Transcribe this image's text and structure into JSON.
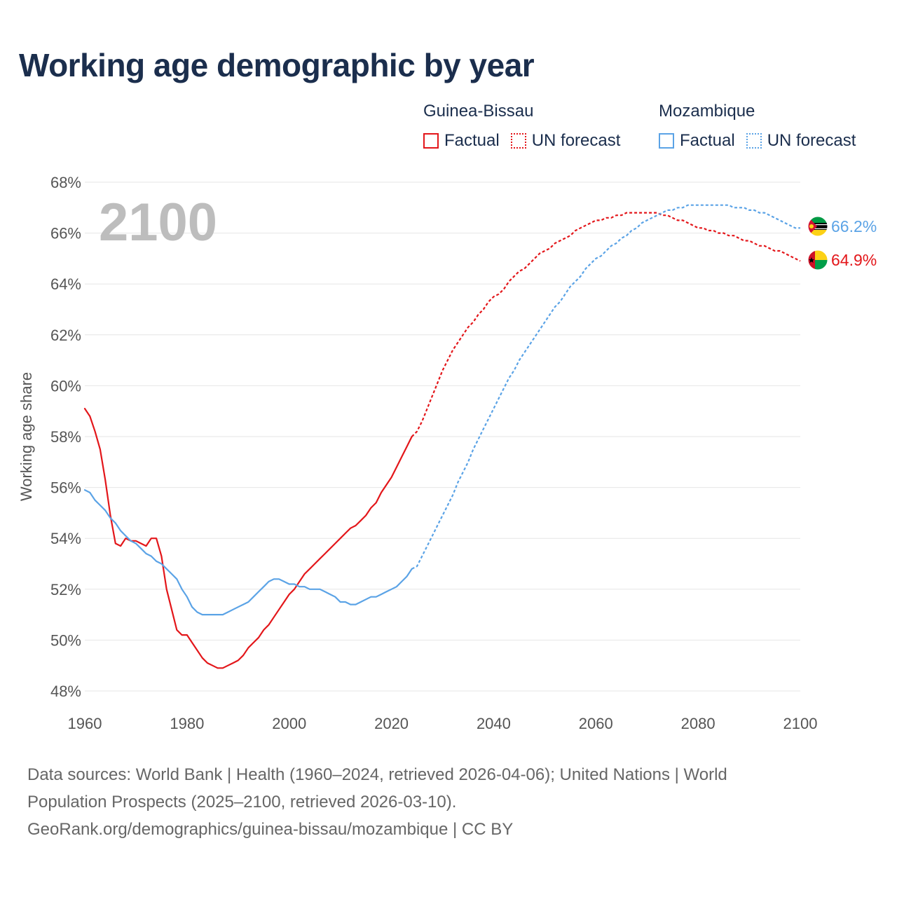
{
  "title": "Working age demographic by year",
  "legend": {
    "groups": [
      {
        "name": "Guinea-Bissau",
        "color": "#e3161a",
        "items": [
          {
            "label": "Factual",
            "style": "solid"
          },
          {
            "label": "UN forecast",
            "style": "dotted"
          }
        ]
      },
      {
        "name": "Mozambique",
        "color": "#5ba3e6",
        "items": [
          {
            "label": "Factual",
            "style": "solid"
          },
          {
            "label": "UN forecast",
            "style": "dotted"
          }
        ]
      }
    ]
  },
  "year_overlay": "2100",
  "end_labels": {
    "mozambique": "66.2%",
    "guinea_bissau": "64.9%"
  },
  "source": {
    "line1": "Data sources: World Bank | Health (1960–2024, retrieved 2026-04-06); United Nations | World",
    "line2": "Population Prospects (2025–2100, retrieved 2026-03-10).",
    "line3": "GeoRank.org/demographics/guinea-bissau/mozambique | CC BY"
  },
  "chart_data": {
    "type": "line",
    "title": "Working age demographic by year",
    "xlabel": "",
    "ylabel": "Working age share",
    "xlim": [
      1960,
      2100
    ],
    "ylim": [
      48,
      68
    ],
    "x_ticks": [
      "1960",
      "1980",
      "2000",
      "2020",
      "2040",
      "2060",
      "2080",
      "2100"
    ],
    "x_tick_values": [
      1960,
      1980,
      2000,
      2020,
      2040,
      2060,
      2080,
      2100
    ],
    "y_ticks": [
      "48%",
      "50%",
      "52%",
      "54%",
      "56%",
      "58%",
      "60%",
      "62%",
      "64%",
      "66%",
      "68%"
    ],
    "y_tick_values": [
      48,
      50,
      52,
      54,
      56,
      58,
      60,
      62,
      64,
      66,
      68
    ],
    "grid": true,
    "series": [
      {
        "name": "Guinea-Bissau",
        "segment": "Factual",
        "color": "#e3161a",
        "style": "solid",
        "x": [
          1960,
          1961,
          1962,
          1963,
          1964,
          1965,
          1966,
          1967,
          1968,
          1969,
          1970,
          1971,
          1972,
          1973,
          1974,
          1975,
          1976,
          1977,
          1978,
          1979,
          1980,
          1981,
          1982,
          1983,
          1984,
          1985,
          1986,
          1987,
          1988,
          1989,
          1990,
          1991,
          1992,
          1993,
          1994,
          1995,
          1996,
          1997,
          1998,
          1999,
          2000,
          2001,
          2002,
          2003,
          2004,
          2005,
          2006,
          2007,
          2008,
          2009,
          2010,
          2011,
          2012,
          2013,
          2014,
          2015,
          2016,
          2017,
          2018,
          2019,
          2020,
          2021,
          2022,
          2023,
          2024
        ],
        "y": [
          59.1,
          58.8,
          58.2,
          57.5,
          56.3,
          54.9,
          53.8,
          53.7,
          54.0,
          53.9,
          53.9,
          53.8,
          53.7,
          54.0,
          54.0,
          53.3,
          52.0,
          51.2,
          50.4,
          50.2,
          50.2,
          49.9,
          49.6,
          49.3,
          49.1,
          49.0,
          48.9,
          48.9,
          49.0,
          49.1,
          49.2,
          49.4,
          49.7,
          49.9,
          50.1,
          50.4,
          50.6,
          50.9,
          51.2,
          51.5,
          51.8,
          52.0,
          52.3,
          52.6,
          52.8,
          53.0,
          53.2,
          53.4,
          53.6,
          53.8,
          54.0,
          54.2,
          54.4,
          54.5,
          54.7,
          54.9,
          55.2,
          55.4,
          55.8,
          56.1,
          56.4,
          56.8,
          57.2,
          57.6,
          58.0
        ]
      },
      {
        "name": "Guinea-Bissau",
        "segment": "UN forecast",
        "color": "#e3161a",
        "style": "dotted",
        "x": [
          2024,
          2025,
          2026,
          2027,
          2028,
          2029,
          2030,
          2031,
          2032,
          2033,
          2034,
          2035,
          2036,
          2037,
          2038,
          2039,
          2040,
          2041,
          2042,
          2043,
          2044,
          2045,
          2046,
          2047,
          2048,
          2049,
          2050,
          2051,
          2052,
          2053,
          2054,
          2055,
          2056,
          2057,
          2058,
          2059,
          2060,
          2061,
          2062,
          2063,
          2064,
          2065,
          2066,
          2067,
          2068,
          2069,
          2070,
          2071,
          2072,
          2073,
          2074,
          2075,
          2076,
          2077,
          2078,
          2079,
          2080,
          2081,
          2082,
          2083,
          2084,
          2085,
          2086,
          2087,
          2088,
          2089,
          2090,
          2091,
          2092,
          2093,
          2094,
          2095,
          2096,
          2097,
          2098,
          2099,
          2100
        ],
        "y": [
          58.0,
          58.2,
          58.6,
          59.1,
          59.6,
          60.1,
          60.6,
          61.0,
          61.4,
          61.7,
          62.0,
          62.3,
          62.5,
          62.8,
          63.0,
          63.3,
          63.5,
          63.6,
          63.8,
          64.1,
          64.3,
          64.5,
          64.6,
          64.8,
          65.0,
          65.2,
          65.3,
          65.4,
          65.6,
          65.7,
          65.8,
          65.9,
          66.1,
          66.2,
          66.3,
          66.4,
          66.5,
          66.5,
          66.6,
          66.6,
          66.7,
          66.7,
          66.8,
          66.8,
          66.8,
          66.8,
          66.8,
          66.8,
          66.8,
          66.7,
          66.7,
          66.6,
          66.5,
          66.5,
          66.4,
          66.3,
          66.2,
          66.2,
          66.1,
          66.1,
          66.0,
          66.0,
          65.9,
          65.9,
          65.8,
          65.7,
          65.7,
          65.6,
          65.5,
          65.5,
          65.4,
          65.3,
          65.3,
          65.2,
          65.1,
          65.0,
          64.9
        ]
      },
      {
        "name": "Mozambique",
        "segment": "Factual",
        "color": "#5ba3e6",
        "style": "solid",
        "x": [
          1960,
          1961,
          1962,
          1963,
          1964,
          1965,
          1966,
          1967,
          1968,
          1969,
          1970,
          1971,
          1972,
          1973,
          1974,
          1975,
          1976,
          1977,
          1978,
          1979,
          1980,
          1981,
          1982,
          1983,
          1984,
          1985,
          1986,
          1987,
          1988,
          1989,
          1990,
          1991,
          1992,
          1993,
          1994,
          1995,
          1996,
          1997,
          1998,
          1999,
          2000,
          2001,
          2002,
          2003,
          2004,
          2005,
          2006,
          2007,
          2008,
          2009,
          2010,
          2011,
          2012,
          2013,
          2014,
          2015,
          2016,
          2017,
          2018,
          2019,
          2020,
          2021,
          2022,
          2023,
          2024
        ],
        "y": [
          55.9,
          55.8,
          55.5,
          55.3,
          55.1,
          54.8,
          54.6,
          54.3,
          54.1,
          53.9,
          53.8,
          53.6,
          53.4,
          53.3,
          53.1,
          53.0,
          52.8,
          52.6,
          52.4,
          52.0,
          51.7,
          51.3,
          51.1,
          51.0,
          51.0,
          51.0,
          51.0,
          51.0,
          51.1,
          51.2,
          51.3,
          51.4,
          51.5,
          51.7,
          51.9,
          52.1,
          52.3,
          52.4,
          52.4,
          52.3,
          52.2,
          52.2,
          52.1,
          52.1,
          52.0,
          52.0,
          52.0,
          51.9,
          51.8,
          51.7,
          51.5,
          51.5,
          51.4,
          51.4,
          51.5,
          51.6,
          51.7,
          51.7,
          51.8,
          51.9,
          52.0,
          52.1,
          52.3,
          52.5,
          52.8
        ]
      },
      {
        "name": "Mozambique",
        "segment": "UN forecast",
        "color": "#5ba3e6",
        "style": "dotted",
        "x": [
          2024,
          2025,
          2026,
          2027,
          2028,
          2029,
          2030,
          2031,
          2032,
          2033,
          2034,
          2035,
          2036,
          2037,
          2038,
          2039,
          2040,
          2041,
          2042,
          2043,
          2044,
          2045,
          2046,
          2047,
          2048,
          2049,
          2050,
          2051,
          2052,
          2053,
          2054,
          2055,
          2056,
          2057,
          2058,
          2059,
          2060,
          2061,
          2062,
          2063,
          2064,
          2065,
          2066,
          2067,
          2068,
          2069,
          2070,
          2071,
          2072,
          2073,
          2074,
          2075,
          2076,
          2077,
          2078,
          2079,
          2080,
          2081,
          2082,
          2083,
          2084,
          2085,
          2086,
          2087,
          2088,
          2089,
          2090,
          2091,
          2092,
          2093,
          2094,
          2095,
          2096,
          2097,
          2098,
          2099,
          2100
        ],
        "y": [
          52.8,
          52.9,
          53.3,
          53.7,
          54.1,
          54.5,
          54.9,
          55.3,
          55.7,
          56.2,
          56.6,
          57.0,
          57.5,
          57.9,
          58.3,
          58.7,
          59.1,
          59.5,
          59.9,
          60.3,
          60.6,
          61.0,
          61.3,
          61.6,
          61.9,
          62.2,
          62.5,
          62.8,
          63.1,
          63.3,
          63.6,
          63.9,
          64.1,
          64.3,
          64.6,
          64.8,
          65.0,
          65.1,
          65.3,
          65.5,
          65.6,
          65.8,
          65.9,
          66.1,
          66.2,
          66.4,
          66.5,
          66.6,
          66.7,
          66.8,
          66.9,
          66.9,
          67.0,
          67.0,
          67.1,
          67.1,
          67.1,
          67.1,
          67.1,
          67.1,
          67.1,
          67.1,
          67.1,
          67.0,
          67.0,
          67.0,
          66.9,
          66.9,
          66.8,
          66.8,
          66.7,
          66.6,
          66.5,
          66.4,
          66.3,
          66.2,
          66.2
        ]
      }
    ]
  }
}
